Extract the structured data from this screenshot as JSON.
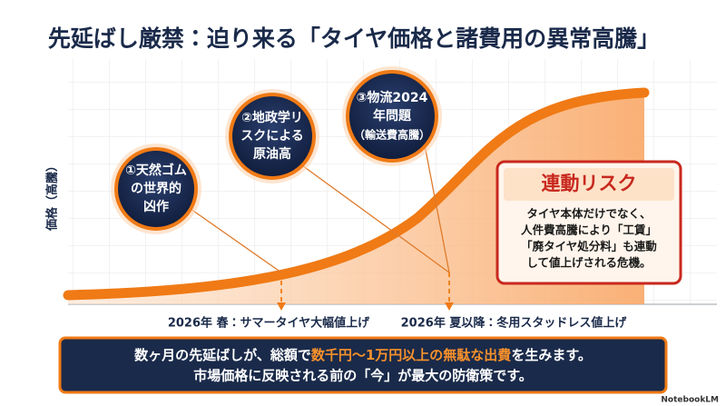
{
  "title": "先延ばし厳禁：迫り来る「タイヤ価格と諸費用の異常高騰」",
  "y_axis_label": "価格（高騰）",
  "factors": [
    {
      "lines": [
        "①天然ゴム",
        "の世界的",
        "凶作"
      ]
    },
    {
      "lines": [
        "②地政学リ",
        "スクによる",
        "原油高"
      ]
    },
    {
      "lines": [
        "③物流2024",
        "年問題",
        "（輸送費高騰）"
      ]
    }
  ],
  "risk": {
    "title": "連動リスク",
    "lines": [
      "タイヤ本体だけでなく、",
      "人件費高騰により「工賃」",
      "「廃タイヤ処分料」も連動",
      "して値上げされる危機。"
    ]
  },
  "timeline": [
    "2026年 春：サマータイヤ大幅値上げ",
    "2026年 夏以降：冬用スタッドレス値上げ"
  ],
  "banner": {
    "line1": [
      "数ヶ月の先延ばしが、総額で",
      "数千円〜1万円以上の無駄な出費",
      "を生みます。"
    ],
    "line2": "市場価格に反映される前の「今」が最大の防衛策です。"
  },
  "footer": "NotebookLM"
}
